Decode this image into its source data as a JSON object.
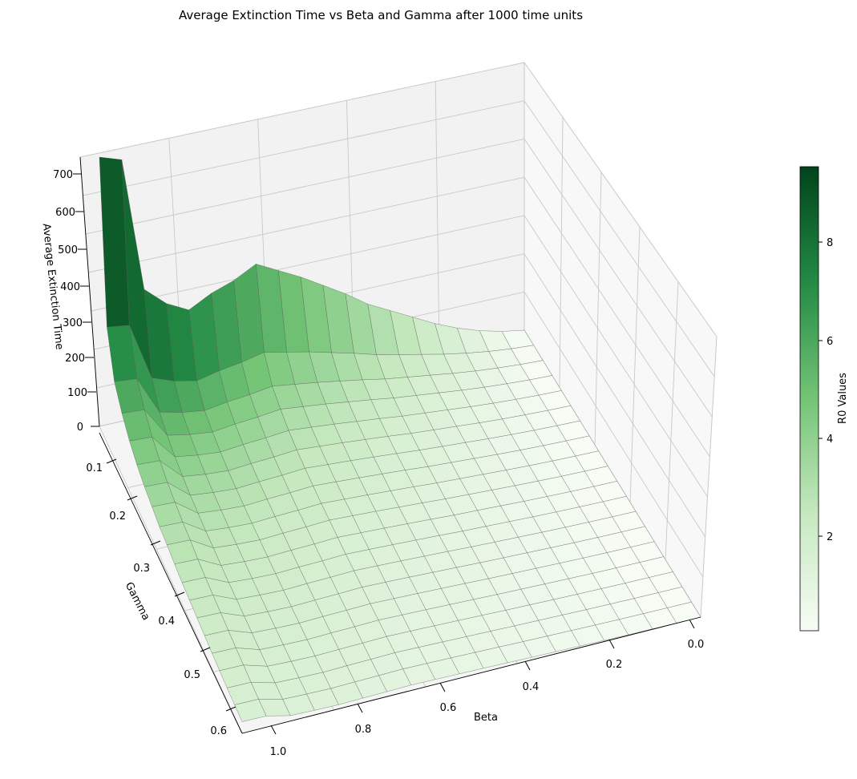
{
  "chart_data": {
    "type": "surface3d",
    "title": "Average Extinction Time vs Beta and Gamma after 1000 time units",
    "xlabel": "Beta",
    "ylabel": "Gamma",
    "zlabel": "Average Extinction Time",
    "x_range": [
      0.0,
      1.0
    ],
    "y_range": [
      0.1,
      0.6
    ],
    "z_range": [
      0,
      700
    ],
    "x_ticks": [
      "0.0",
      "0.2",
      "0.4",
      "0.6",
      "0.8",
      "1.0"
    ],
    "y_ticks": [
      "0.1",
      "0.2",
      "0.3",
      "0.4",
      "0.5",
      "0.6"
    ],
    "z_ticks": [
      "0",
      "100",
      "200",
      "300",
      "400",
      "500",
      "600",
      "700"
    ],
    "colormap": "Greens",
    "colorbar": {
      "label": "R0 Values",
      "ticks": [
        "2",
        "4",
        "6",
        "8"
      ],
      "range": [
        0.1,
        9.5
      ],
      "low_color": "#f7fcf5",
      "high_color": "#00441b"
    },
    "grid": true,
    "grid_size": {
      "beta_points": 20,
      "gamma_points": 20
    },
    "gamma_row_01_z": [
      0,
      10,
      25,
      45,
      70,
      100,
      130,
      160,
      200,
      235,
      270,
      300,
      330,
      300,
      280,
      250,
      280,
      330,
      680,
      700
    ],
    "beta_column_10_z": [
      700,
      300,
      200,
      160,
      130,
      110,
      95,
      85,
      75,
      70,
      62,
      56,
      52,
      48,
      44,
      40,
      37,
      34,
      32,
      30
    ]
  }
}
